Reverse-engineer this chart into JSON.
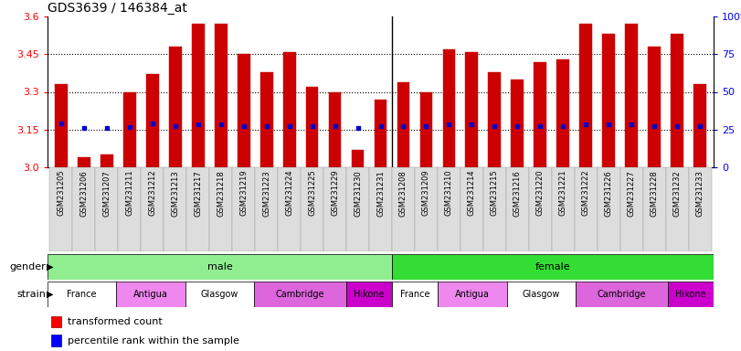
{
  "title": "GDS3639 / 146384_at",
  "samples": [
    "GSM231205",
    "GSM231206",
    "GSM231207",
    "GSM231211",
    "GSM231212",
    "GSM231213",
    "GSM231217",
    "GSM231218",
    "GSM231219",
    "GSM231223",
    "GSM231224",
    "GSM231225",
    "GSM231229",
    "GSM231230",
    "GSM231231",
    "GSM231208",
    "GSM231209",
    "GSM231210",
    "GSM231214",
    "GSM231215",
    "GSM231216",
    "GSM231220",
    "GSM231221",
    "GSM231222",
    "GSM231226",
    "GSM231227",
    "GSM231228",
    "GSM231232",
    "GSM231233"
  ],
  "bar_values": [
    3.33,
    3.04,
    3.05,
    3.3,
    3.37,
    3.48,
    3.57,
    3.57,
    3.45,
    3.38,
    3.46,
    3.32,
    3.3,
    3.07,
    3.27,
    3.34,
    3.3,
    3.47,
    3.46,
    3.38,
    3.35,
    3.42,
    3.43,
    3.57,
    3.53,
    3.57,
    3.48,
    3.53,
    3.33
  ],
  "percentile_values": [
    3.175,
    3.155,
    3.155,
    3.16,
    3.175,
    3.165,
    3.17,
    3.17,
    3.165,
    3.165,
    3.165,
    3.165,
    3.165,
    3.155,
    3.165,
    3.165,
    3.165,
    3.17,
    3.17,
    3.165,
    3.165,
    3.165,
    3.165,
    3.17,
    3.17,
    3.17,
    3.165,
    3.165,
    3.165
  ],
  "gender_groups": [
    {
      "label": "male",
      "start": 0,
      "end": 15,
      "color": "#90EE90"
    },
    {
      "label": "female",
      "start": 15,
      "end": 29,
      "color": "#33CC33"
    }
  ],
  "strain_groups": [
    {
      "label": "France",
      "start": 0,
      "end": 3,
      "color": "#FFFFFF"
    },
    {
      "label": "Antigua",
      "start": 3,
      "end": 6,
      "color": "#EE99EE"
    },
    {
      "label": "Glasgow",
      "start": 6,
      "end": 9,
      "color": "#FFFFFF"
    },
    {
      "label": "Cambridge",
      "start": 9,
      "end": 13,
      "color": "#CC66CC"
    },
    {
      "label": "Hikone",
      "start": 13,
      "end": 15,
      "color": "#CC00CC"
    },
    {
      "label": "France",
      "start": 15,
      "end": 17,
      "color": "#FFFFFF"
    },
    {
      "label": "Antigua",
      "start": 17,
      "end": 20,
      "color": "#EE99EE"
    },
    {
      "label": "Glasgow",
      "start": 20,
      "end": 23,
      "color": "#FFFFFF"
    },
    {
      "label": "Cambridge",
      "start": 23,
      "end": 27,
      "color": "#CC66CC"
    },
    {
      "label": "Hikone",
      "start": 27,
      "end": 29,
      "color": "#CC00CC"
    }
  ],
  "ymin": 3.0,
  "ymax": 3.6,
  "yticks_left": [
    3.0,
    3.15,
    3.3,
    3.45,
    3.6
  ],
  "yticks_right": [
    0,
    25,
    50,
    75,
    100
  ],
  "bar_color": "#CC0000",
  "percentile_color": "#0000CC",
  "bar_width": 0.55,
  "title_fontsize": 10,
  "xticklabel_bg": "#DDDDDD",
  "male_color": "#90EE90",
  "female_color": "#33DD33"
}
